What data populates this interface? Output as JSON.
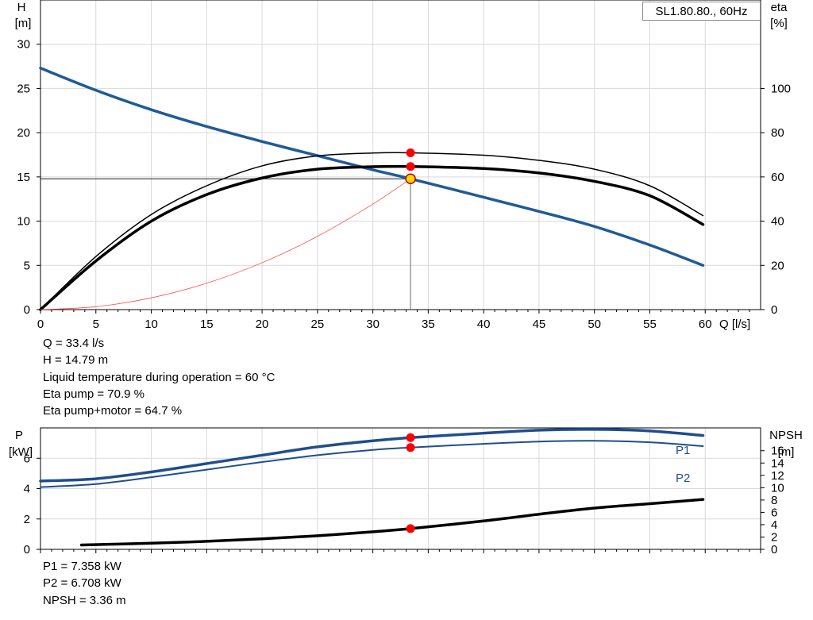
{
  "legend_label": "SL1.80.80., 60Hz",
  "top_info": [
    "Q = 33.4 l/s",
    "H = 14.79 m",
    "Liquid temperature during operation = 60 °C",
    "Eta pump = 70.9 %",
    "Eta pump+motor = 64.7 %"
  ],
  "bottom_info": [
    "P1 = 7.358 kW",
    "P2 = 6.708 kW",
    "NPSH = 3.36 m"
  ],
  "colors": {
    "head": "#1f5b96",
    "eta": "#000000",
    "system": "#ff4d4d",
    "marker": "#ff0000",
    "grid": "#d9d9d9"
  },
  "chart_data": [
    {
      "type": "line",
      "y_title": "H",
      "y_unit": "[m]",
      "y2_title": "eta",
      "y2_unit": "[%]",
      "x_title": "Q [l/s]",
      "xlim": [
        0,
        65
      ],
      "ylim": [
        0,
        35
      ],
      "y2lim": [
        0,
        140
      ],
      "x_ticks": [
        "0",
        "5",
        "10",
        "15",
        "20",
        "25",
        "30",
        "35",
        "40",
        "45",
        "50",
        "55",
        "60"
      ],
      "y_ticks": [
        "0",
        "5",
        "10",
        "15",
        "20",
        "25",
        "30"
      ],
      "y2_ticks": [
        "0",
        "20",
        "40",
        "60",
        "80",
        "100"
      ],
      "grid": true,
      "series": [
        {
          "axis": "y",
          "color": "#1f5b96",
          "width": 3.5,
          "x": [
            0,
            5,
            10,
            15,
            20,
            25,
            30,
            33.4,
            40,
            45,
            50,
            55,
            59.8
          ],
          "values": [
            27.3,
            24.8,
            22.6,
            20.7,
            19.0,
            17.4,
            15.8,
            14.79,
            12.7,
            11.1,
            9.4,
            7.3,
            5.0
          ]
        },
        {
          "axis": "y2",
          "color": "#000000",
          "width": 1.5,
          "x": [
            0,
            5,
            10,
            15,
            20,
            25,
            30,
            33.4,
            40,
            45,
            50,
            55,
            59.8
          ],
          "values": [
            0,
            24,
            43,
            56,
            65,
            69.5,
            70.8,
            70.9,
            69.8,
            67.5,
            63.5,
            56,
            42.5
          ]
        },
        {
          "axis": "y2",
          "color": "#000000",
          "width": 3.5,
          "x": [
            0,
            5,
            10,
            15,
            20,
            25,
            30,
            33.4,
            40,
            45,
            50,
            55,
            59.8
          ],
          "values": [
            0,
            22,
            40,
            52,
            59.5,
            63.5,
            64.6,
            64.7,
            63.8,
            61.8,
            58,
            51.5,
            38.5
          ]
        },
        {
          "axis": "y",
          "color": "#ff4d4d",
          "width": 0.8,
          "x": [
            0,
            5,
            10,
            15,
            20,
            25,
            30,
            33.4
          ],
          "values": [
            0,
            0.33,
            1.33,
            2.98,
            5.3,
            8.28,
            11.93,
            14.79
          ]
        }
      ],
      "markers": [
        {
          "x": 33.4,
          "y2": 70.9
        },
        {
          "x": 33.4,
          "y2": 64.7
        }
      ],
      "duty_point": {
        "x": 33.4,
        "y": 14.79
      }
    },
    {
      "type": "line",
      "y_title": "P",
      "y_unit": "[kW]",
      "y2_title": "NPSH",
      "y2_unit": "[m]",
      "xlim": [
        0,
        65
      ],
      "ylim": [
        0,
        8
      ],
      "y2lim": [
        0,
        19.7
      ],
      "y_ticks": [
        "0",
        "2",
        "4",
        "6"
      ],
      "y2_ticks": [
        "0",
        "2",
        "4",
        "6",
        "8",
        "10",
        "12",
        "14",
        "16"
      ],
      "series": [
        {
          "name": "P1",
          "axis": "y",
          "color": "#1f4e8c",
          "width": 3.5,
          "x": [
            0,
            5,
            10,
            15,
            20,
            25,
            30,
            33.4,
            40,
            45,
            50,
            55,
            59.8
          ],
          "values": [
            4.5,
            4.65,
            5.1,
            5.65,
            6.2,
            6.75,
            7.15,
            7.358,
            7.65,
            7.85,
            7.9,
            7.8,
            7.5
          ]
        },
        {
          "name": "P2",
          "axis": "y",
          "color": "#1f4e8c",
          "width": 2,
          "x": [
            0,
            5,
            10,
            15,
            20,
            25,
            30,
            33.4,
            40,
            45,
            50,
            55,
            59.8
          ],
          "values": [
            4.1,
            4.3,
            4.75,
            5.25,
            5.75,
            6.2,
            6.55,
            6.708,
            6.95,
            7.1,
            7.15,
            7.05,
            6.8
          ]
        },
        {
          "axis": "y2",
          "color": "#000000",
          "width": 3.5,
          "x": [
            3.7,
            10,
            15,
            20,
            25,
            30,
            33.4,
            40,
            45,
            50,
            55,
            59.8
          ],
          "values": [
            0.7,
            1.0,
            1.3,
            1.7,
            2.2,
            2.85,
            3.36,
            4.6,
            5.7,
            6.7,
            7.4,
            8.1
          ]
        }
      ],
      "markers": [
        {
          "x": 33.4,
          "y": 7.358
        },
        {
          "x": 33.4,
          "y": 6.708
        },
        {
          "x": 33.4,
          "y2": 3.36
        }
      ]
    }
  ]
}
